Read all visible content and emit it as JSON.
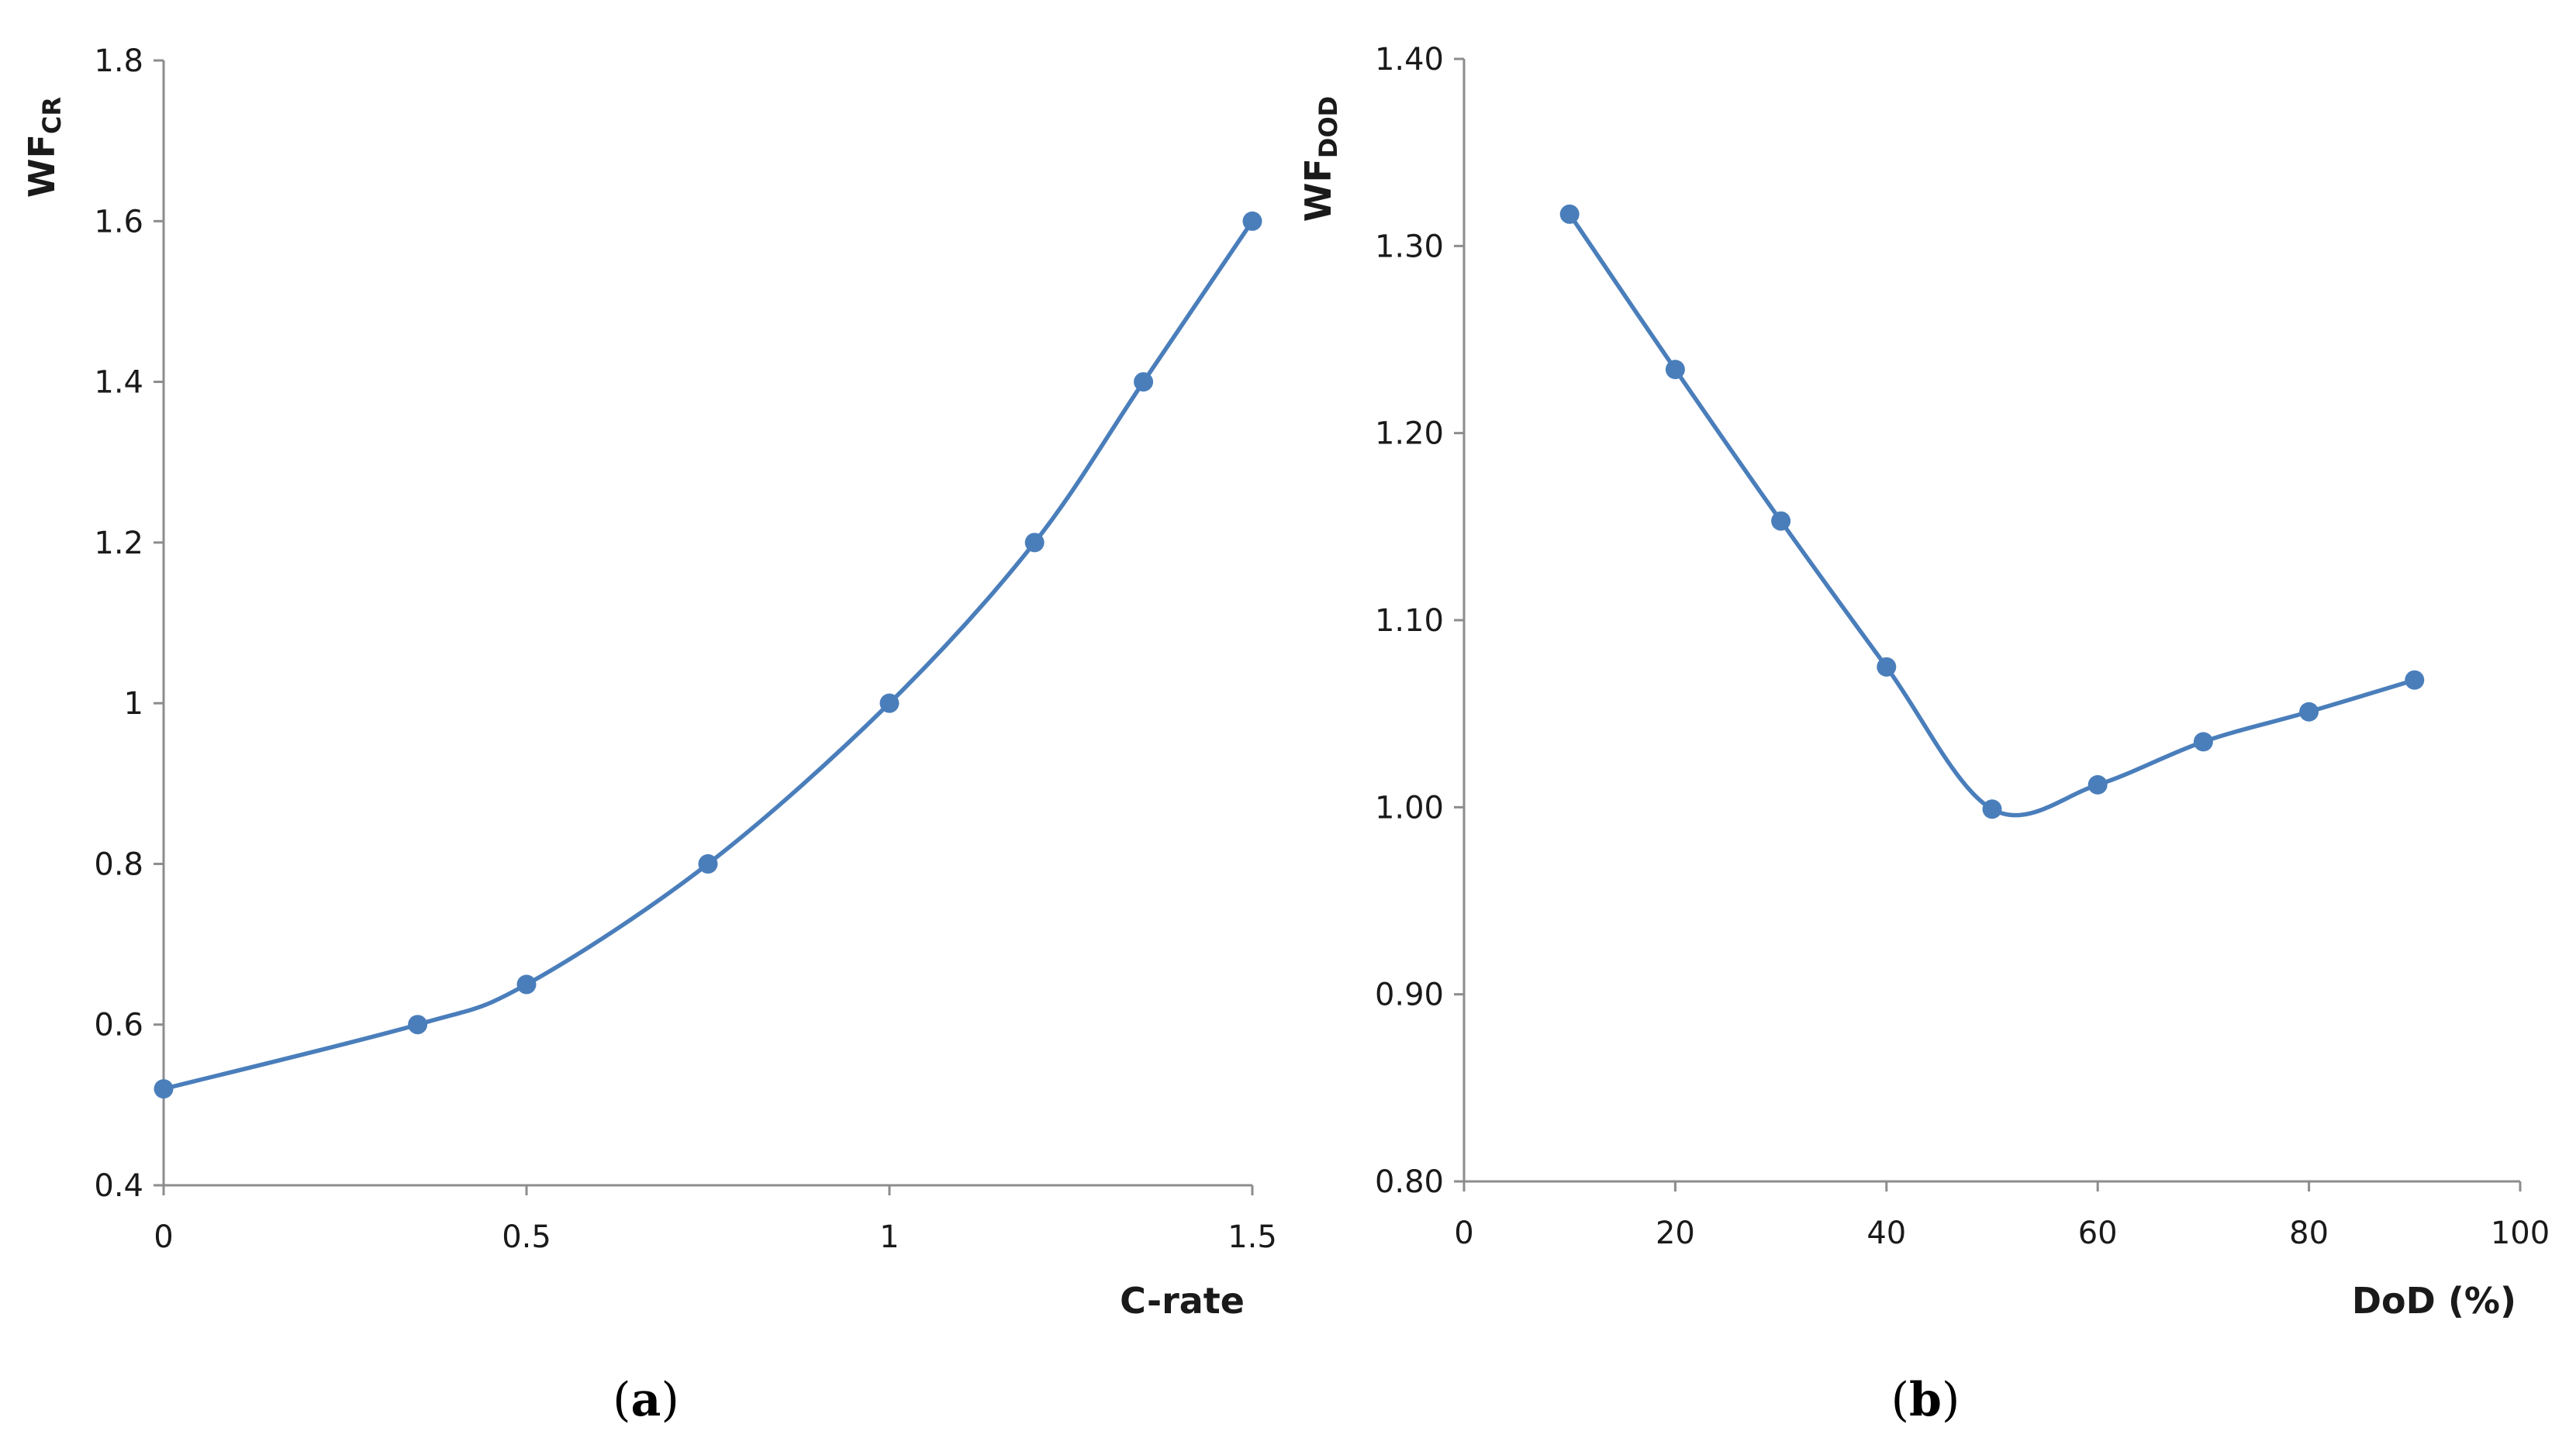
{
  "colors": {
    "series": "#4a7ebb",
    "axis": "#8c8c8c",
    "text": "#1a1a1a"
  },
  "chart_data": [
    {
      "type": "line",
      "panel": "a",
      "panel_label": {
        "open": "(",
        "letter": "a",
        "close": ")"
      },
      "xlabel": "C-rate",
      "ylabel": {
        "main": "WF",
        "sub": "CR"
      },
      "xlim": [
        0,
        1.5
      ],
      "ylim": [
        0.4,
        1.8
      ],
      "x_ticks": [
        "0",
        "0.5",
        "1",
        "1.5"
      ],
      "x_tick_values": [
        0,
        0.5,
        1,
        1.5
      ],
      "y_ticks": [
        "0.4",
        "0.6",
        "0.8",
        "1",
        "1.2",
        "1.4",
        "1.6",
        "1.8"
      ],
      "y_tick_values": [
        0.4,
        0.6,
        0.8,
        1.0,
        1.2,
        1.4,
        1.6,
        1.8
      ],
      "smooth": true,
      "markers": true,
      "grid": false,
      "series": [
        {
          "x": [
            0,
            0.35,
            0.5,
            0.75,
            1,
            1.2,
            1.35,
            1.5
          ],
          "values": [
            0.52,
            0.6,
            0.65,
            0.8,
            1.0,
            1.2,
            1.4,
            1.6
          ]
        }
      ]
    },
    {
      "type": "line",
      "panel": "b",
      "panel_label": {
        "open": "(",
        "letter": "b",
        "close": ")"
      },
      "xlabel": "DoD (%)",
      "ylabel": {
        "main": "WF",
        "sub": "DOD"
      },
      "xlim": [
        0,
        100
      ],
      "ylim": [
        0.8,
        1.4
      ],
      "x_ticks": [
        "0",
        "20",
        "40",
        "60",
        "80",
        "100"
      ],
      "x_tick_values": [
        0,
        20,
        40,
        60,
        80,
        100
      ],
      "y_ticks": [
        "0.80",
        "0.90",
        "1.00",
        "1.10",
        "1.20",
        "1.30",
        "1.40"
      ],
      "y_tick_values": [
        0.8,
        0.9,
        1.0,
        1.1,
        1.2,
        1.3,
        1.4
      ],
      "smooth": true,
      "markers": true,
      "grid": false,
      "series": [
        {
          "x": [
            10,
            20,
            30,
            40,
            50,
            60,
            70,
            80,
            90
          ],
          "values": [
            1.317,
            1.234,
            1.153,
            1.075,
            0.999,
            1.012,
            1.035,
            1.051,
            1.068
          ]
        }
      ]
    }
  ]
}
